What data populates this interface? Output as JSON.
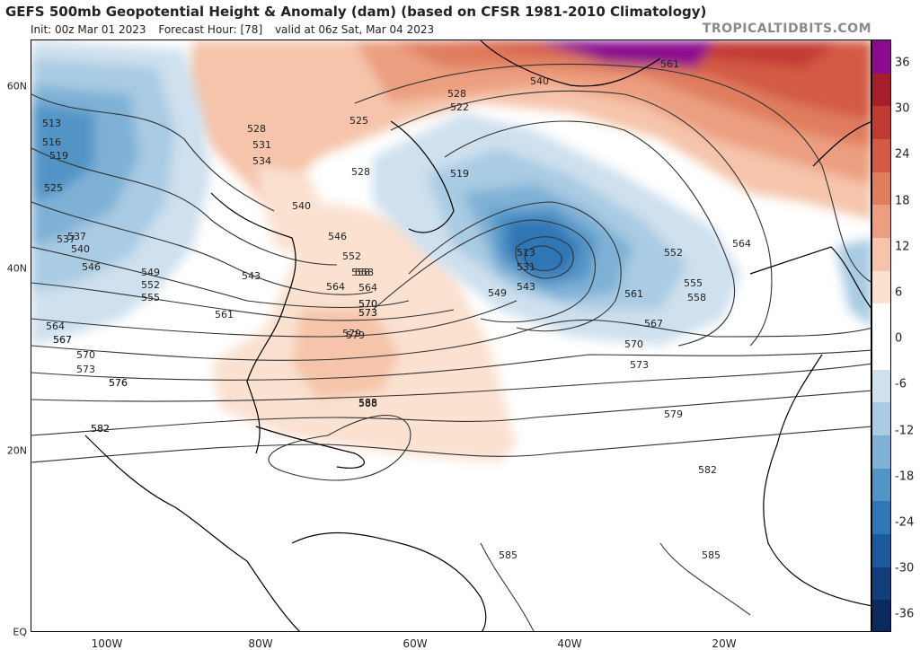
{
  "header": {
    "title": "GEFS 500mb Geopotential Height & Anomaly (dam) (based on CFSR 1981-2010 Climatology)",
    "init": "Init: 00z Mar 01 2023",
    "forecast_hour": "Forecast Hour: [78]",
    "valid": "valid at 06z Sat, Mar 04 2023",
    "brand": "TROPICALTIDBITS.COM"
  },
  "axes": {
    "lat_labels": [
      "60N",
      "40N",
      "20N",
      "EQ"
    ],
    "lon_labels": [
      "100W",
      "80W",
      "60W",
      "40W",
      "20W"
    ]
  },
  "colorbar": {
    "labels": [
      "36",
      "30",
      "24",
      "18",
      "12",
      "6",
      "0",
      "-6",
      "-12",
      "-18",
      "-24",
      "-30",
      "-36"
    ],
    "colors": [
      "#8b0a8e",
      "#a41f2a",
      "#c23a34",
      "#d35a45",
      "#e07d5e",
      "#ec9f80",
      "#f5c4aa",
      "#fbe1d0",
      "#ffffff",
      "#ffffff",
      "#cfe0ee",
      "#a9cbe3",
      "#7fb1d6",
      "#5394c6",
      "#2e76b5",
      "#1d5a9b",
      "#123f7c",
      "#0a2a5e"
    ]
  },
  "contour_labels": [
    "513",
    "516",
    "519",
    "525",
    "528",
    "531",
    "534",
    "537",
    "540",
    "543",
    "546",
    "549",
    "552",
    "555",
    "558",
    "561",
    "564",
    "567",
    "570",
    "573",
    "576",
    "579",
    "582",
    "585",
    "588",
    "522",
    "519",
    "528",
    "540",
    "561",
    "552",
    "555",
    "558",
    "564",
    "567",
    "570",
    "573",
    "579",
    "582",
    "585",
    "549",
    "543",
    "528",
    "525",
    "546",
    "552",
    "558",
    "564",
    "570",
    "573",
    "579",
    "588",
    "513",
    "531",
    "537",
    "540",
    "561",
    "564",
    "567",
    "570",
    "573",
    "576",
    "582"
  ]
}
